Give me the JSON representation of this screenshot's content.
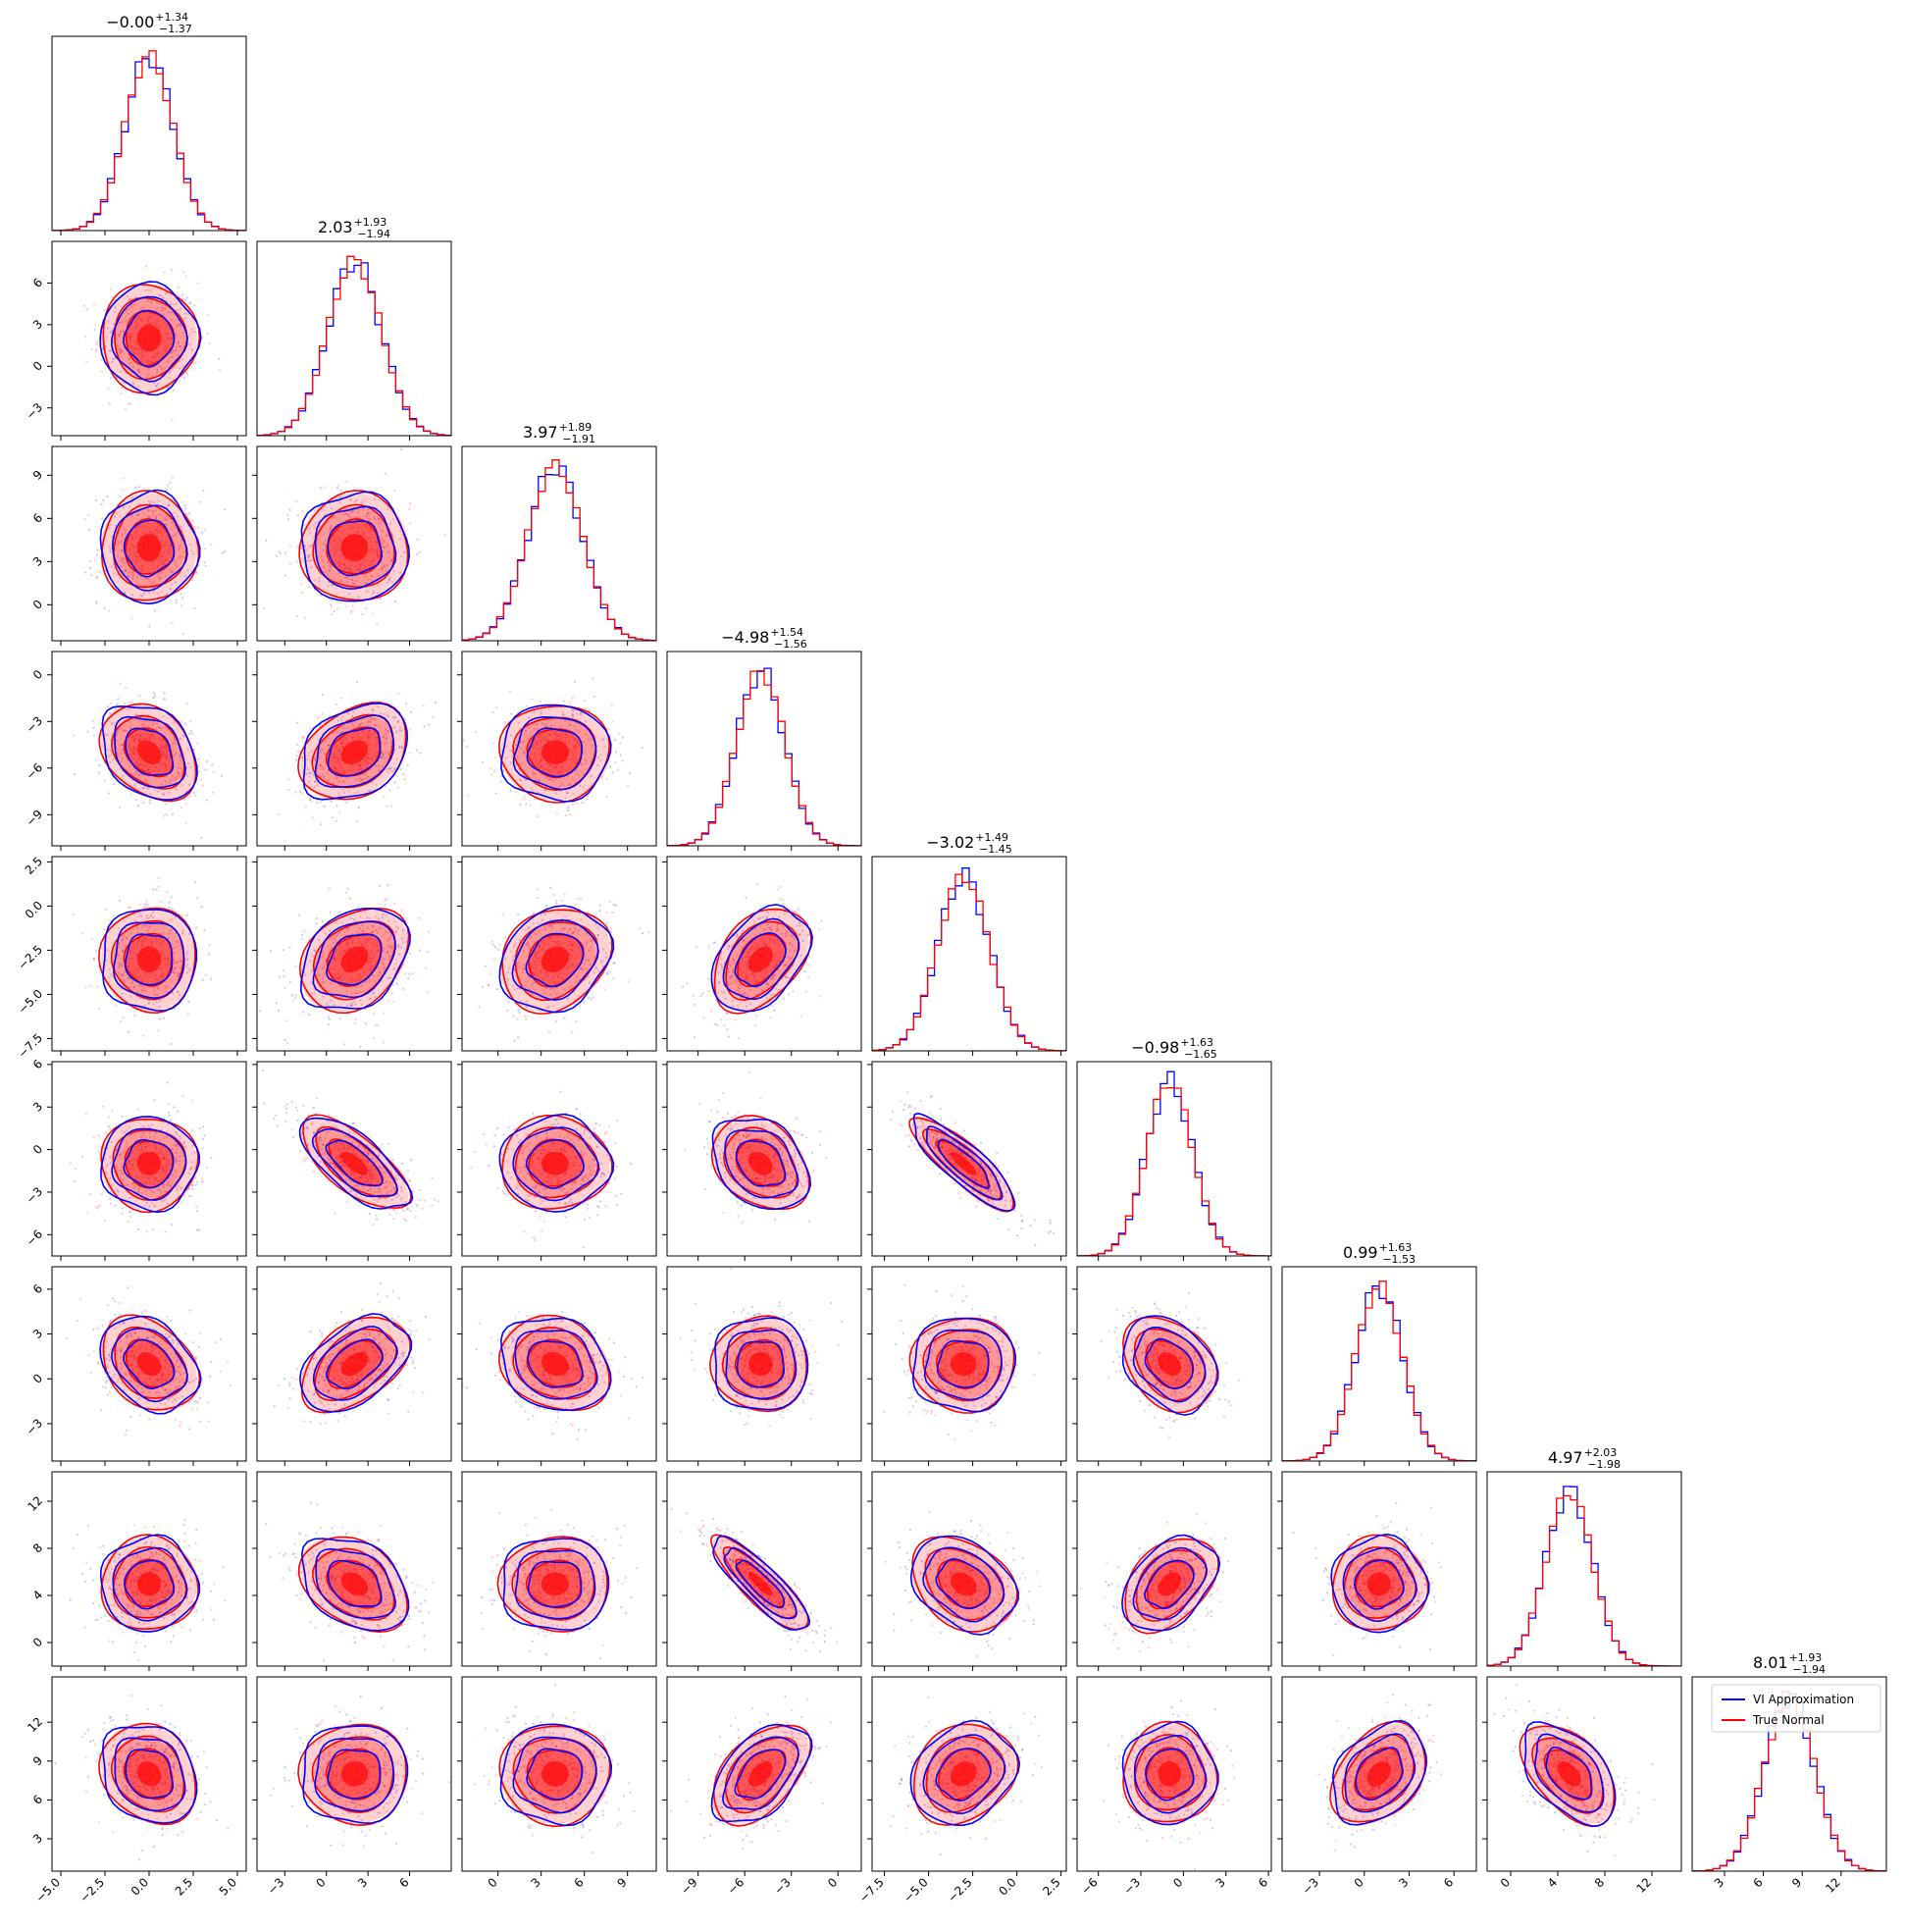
{
  "chart_data": {
    "type": "corner",
    "n_params": 9,
    "series": [
      {
        "name": "VI Approximation",
        "color": "#0000ff"
      },
      {
        "name": "True Normal",
        "color": "#ff0000"
      }
    ],
    "legend": {
      "placement": "bottom-right panel, top-right corner",
      "entries": [
        "VI Approximation",
        "True Normal"
      ]
    },
    "grid": false,
    "titles": [
      {
        "median": "−0.00",
        "plus": "+1.34",
        "minus": "−1.37"
      },
      {
        "median": "2.03",
        "plus": "+1.93",
        "minus": "−1.94"
      },
      {
        "median": "3.97",
        "plus": "+1.89",
        "minus": "−1.91"
      },
      {
        "median": "−4.98",
        "plus": "+1.54",
        "minus": "−1.56"
      },
      {
        "median": "−3.02",
        "plus": "+1.49",
        "minus": "−1.45"
      },
      {
        "median": "−0.98",
        "plus": "+1.63",
        "minus": "−1.65"
      },
      {
        "median": "0.99",
        "plus": "+1.63",
        "minus": "−1.53"
      },
      {
        "median": "4.97",
        "plus": "+2.03",
        "minus": "−1.98"
      },
      {
        "median": "8.01",
        "plus": "+1.93",
        "minus": "−1.94"
      }
    ],
    "params": [
      {
        "mean": 0.0,
        "sd": 1.36,
        "range": [
          -5.5,
          5.5
        ],
        "ticks": [
          -5.0,
          -2.5,
          0.0,
          2.5,
          5.0
        ],
        "tick_labels": [
          "−5.0",
          "−2.5",
          "0.0",
          "2.5",
          "5.0"
        ]
      },
      {
        "mean": 2.03,
        "sd": 1.94,
        "range": [
          -5.0,
          9.0
        ],
        "ticks": [
          -3,
          0,
          3,
          6
        ],
        "tick_labels": [
          "−3",
          "0",
          "3",
          "6"
        ]
      },
      {
        "mean": 3.97,
        "sd": 1.9,
        "range": [
          -2.5,
          11.0
        ],
        "ticks": [
          0,
          3,
          6,
          9
        ],
        "tick_labels": [
          "0",
          "3",
          "6",
          "9"
        ]
      },
      {
        "mean": -4.98,
        "sd": 1.55,
        "range": [
          -11.0,
          1.5
        ],
        "ticks": [
          -9,
          -6,
          -3,
          0
        ],
        "tick_labels": [
          "−9",
          "−6",
          "−3",
          "0"
        ]
      },
      {
        "mean": -3.02,
        "sd": 1.47,
        "range": [
          -8.2,
          2.8
        ],
        "ticks": [
          -7.5,
          -5.0,
          -2.5,
          0.0,
          2.5
        ],
        "tick_labels": [
          "−7.5",
          "−5.0",
          "−2.5",
          "0.0",
          "2.5"
        ]
      },
      {
        "mean": -0.98,
        "sd": 1.64,
        "range": [
          -7.5,
          6.2
        ],
        "ticks": [
          -6,
          -3,
          0,
          3,
          6
        ],
        "tick_labels": [
          "−6",
          "−3",
          "0",
          "3",
          "6"
        ]
      },
      {
        "mean": 0.99,
        "sd": 1.58,
        "range": [
          -5.5,
          7.5
        ],
        "ticks": [
          -3,
          0,
          3,
          6
        ],
        "tick_labels": [
          "−3",
          "0",
          "3",
          "6"
        ]
      },
      {
        "mean": 4.97,
        "sd": 2.0,
        "range": [
          -2.0,
          14.5
        ],
        "ticks": [
          0,
          4,
          8,
          12
        ],
        "tick_labels": [
          "0",
          "4",
          "8",
          "12"
        ]
      },
      {
        "mean": 8.01,
        "sd": 1.93,
        "range": [
          0.5,
          15.5
        ],
        "ticks": [
          3,
          6,
          9,
          12
        ],
        "tick_labels": [
          "3",
          "6",
          "9",
          "12"
        ]
      }
    ],
    "correlations": [
      {
        "i": 1,
        "j": 0,
        "r": 0.0
      },
      {
        "i": 2,
        "j": 0,
        "r": 0.0
      },
      {
        "i": 2,
        "j": 1,
        "r": 0.0
      },
      {
        "i": 3,
        "j": 0,
        "r": -0.3
      },
      {
        "i": 3,
        "j": 1,
        "r": 0.3
      },
      {
        "i": 3,
        "j": 2,
        "r": 0.0
      },
      {
        "i": 4,
        "j": 0,
        "r": 0.0
      },
      {
        "i": 4,
        "j": 1,
        "r": 0.3
      },
      {
        "i": 4,
        "j": 2,
        "r": 0.2
      },
      {
        "i": 4,
        "j": 3,
        "r": 0.4
      },
      {
        "i": 5,
        "j": 0,
        "r": 0.0
      },
      {
        "i": 5,
        "j": 1,
        "r": -0.7
      },
      {
        "i": 5,
        "j": 2,
        "r": 0.0
      },
      {
        "i": 5,
        "j": 3,
        "r": -0.3
      },
      {
        "i": 5,
        "j": 4,
        "r": -0.85
      },
      {
        "i": 6,
        "j": 0,
        "r": -0.3
      },
      {
        "i": 6,
        "j": 1,
        "r": 0.45
      },
      {
        "i": 6,
        "j": 2,
        "r": -0.2
      },
      {
        "i": 6,
        "j": 3,
        "r": 0.0
      },
      {
        "i": 6,
        "j": 4,
        "r": 0.0
      },
      {
        "i": 6,
        "j": 5,
        "r": -0.3
      },
      {
        "i": 7,
        "j": 0,
        "r": 0.0
      },
      {
        "i": 7,
        "j": 1,
        "r": -0.35
      },
      {
        "i": 7,
        "j": 2,
        "r": 0.0
      },
      {
        "i": 7,
        "j": 3,
        "r": -0.85
      },
      {
        "i": 7,
        "j": 4,
        "r": -0.3
      },
      {
        "i": 7,
        "j": 5,
        "r": 0.4
      },
      {
        "i": 7,
        "j": 6,
        "r": 0.0
      },
      {
        "i": 8,
        "j": 0,
        "r": -0.2
      },
      {
        "i": 8,
        "j": 1,
        "r": 0.0
      },
      {
        "i": 8,
        "j": 2,
        "r": 0.0
      },
      {
        "i": 8,
        "j": 3,
        "r": 0.5
      },
      {
        "i": 8,
        "j": 4,
        "r": 0.2
      },
      {
        "i": 8,
        "j": 5,
        "r": 0.0
      },
      {
        "i": 8,
        "j": 6,
        "r": 0.35
      },
      {
        "i": 8,
        "j": 7,
        "r": -0.5
      }
    ]
  }
}
